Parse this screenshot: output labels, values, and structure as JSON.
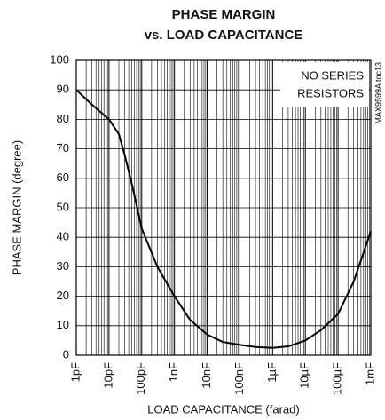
{
  "chart_data": {
    "type": "line",
    "title": [
      "PHASE MARGIN",
      "vs. LOAD CAPACITANCE"
    ],
    "x_label": "LOAD CAPACITANCE (farad)",
    "y_label": "PHASE MARGIN (degree)",
    "annotation": [
      "NO SERIES",
      "RESISTORS"
    ],
    "side_note": "MAX9599A toc13",
    "x_scale": "log",
    "grid": true,
    "minor_grid": true,
    "xlim": [
      1e-12,
      0.001
    ],
    "ylim": [
      0,
      100
    ],
    "xticks": [
      {
        "value": 1e-12,
        "label": "1pF"
      },
      {
        "value": 1e-11,
        "label": "10pF"
      },
      {
        "value": 1e-10,
        "label": "100pF"
      },
      {
        "value": 1e-09,
        "label": "1nF"
      },
      {
        "value": 1e-08,
        "label": "10nF"
      },
      {
        "value": 1e-07,
        "label": "100nF"
      },
      {
        "value": 1e-06,
        "label": "1µF"
      },
      {
        "value": 1e-05,
        "label": "10µF"
      },
      {
        "value": 0.0001,
        "label": "100µF"
      },
      {
        "value": 0.001,
        "label": "1mF"
      }
    ],
    "yticks": [
      0,
      10,
      20,
      30,
      40,
      50,
      60,
      70,
      80,
      90,
      100
    ],
    "series": [
      {
        "name": "Phase margin",
        "color": "#000000",
        "x": [
          1e-12,
          3e-12,
          1e-11,
          2e-11,
          3e-11,
          5e-11,
          1e-10,
          3e-10,
          1e-09,
          3e-09,
          1e-08,
          3e-08,
          1e-07,
          3e-07,
          1e-06,
          3e-06,
          1e-05,
          3e-05,
          0.0001,
          0.0003,
          0.001
        ],
        "values": [
          90,
          85,
          80,
          75,
          68,
          58,
          43,
          30,
          20,
          12,
          7,
          4.5,
          3.5,
          2.8,
          2.5,
          3,
          5,
          8.5,
          14,
          25,
          42
        ]
      }
    ]
  }
}
